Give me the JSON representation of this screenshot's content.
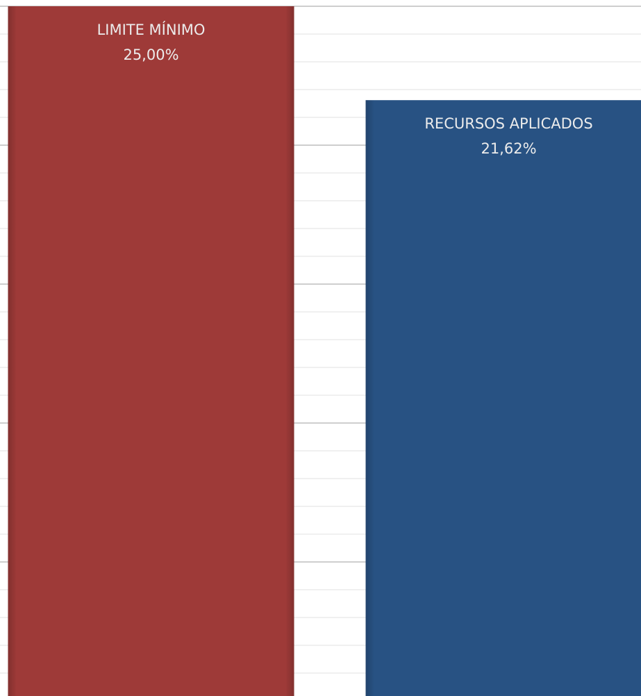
{
  "chart_data": {
    "type": "bar",
    "categories": [
      "LIMITE MÍNIMO",
      "RECURSOS APLICADOS"
    ],
    "values": [
      25,
      21.62
    ],
    "value_labels": [
      "25,00%",
      "21,62%"
    ],
    "colors": [
      "#9e3a38",
      "#285283"
    ],
    "ylim": [
      0,
      25
    ],
    "yticks": [
      0,
      5,
      10,
      15,
      20,
      25
    ],
    "minor_yticks": [
      1,
      2,
      3,
      4,
      6,
      7,
      8,
      9,
      11,
      12,
      13,
      14,
      16,
      17,
      18,
      19,
      21,
      22,
      23,
      24
    ],
    "grid": true
  }
}
